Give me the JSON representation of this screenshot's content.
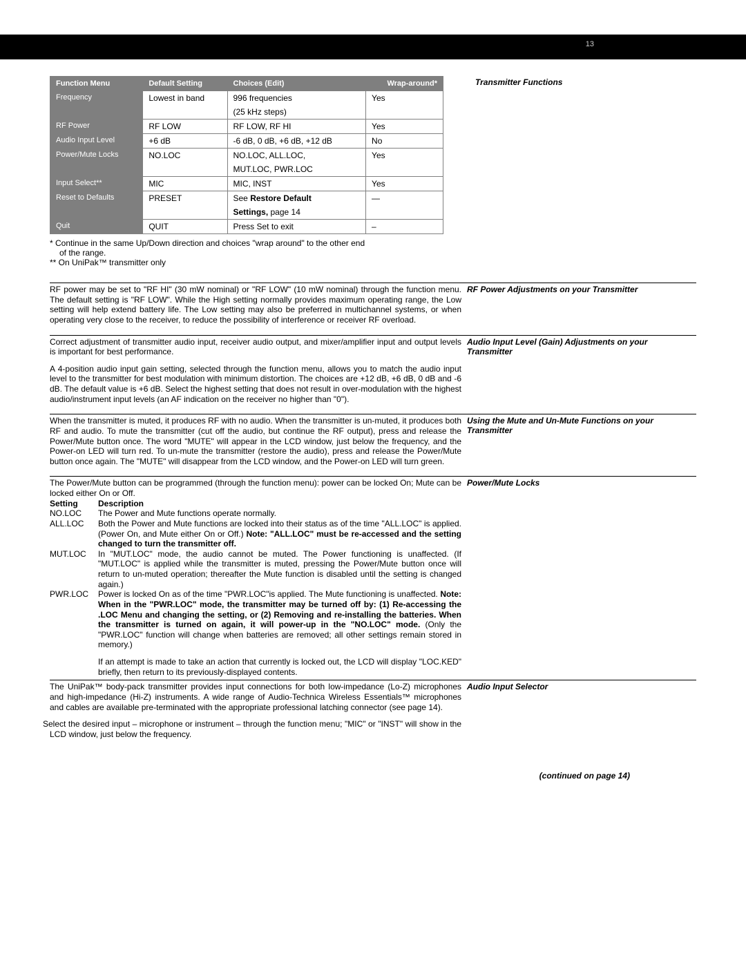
{
  "page_number": "13",
  "table": {
    "headers": [
      "Function Menu",
      "Default Setting",
      "Choices (Edit)",
      "Wrap-around*"
    ],
    "rows": [
      {
        "label": "Frequency",
        "default": "Lowest in band",
        "choices": "996 frequencies",
        "choices2": "(25 kHz steps)",
        "wrap": "Yes"
      },
      {
        "label": "RF Power",
        "default": "RF LOW",
        "choices": "RF LOW, RF HI",
        "wrap": "Yes"
      },
      {
        "label": "Audio Input Level",
        "default": "+6 dB",
        "choices": "-6 dB, 0 dB, +6 dB, +12 dB",
        "wrap": "No"
      },
      {
        "label": "Power/Mute Locks",
        "default": "NO.LOC",
        "choices": "NO.LOC, ALL.LOC,",
        "choices2": "MUT.LOC, PWR.LOC",
        "wrap": "Yes"
      },
      {
        "label": "Input Select**",
        "default": "MIC",
        "choices": "MIC, INST",
        "wrap": "Yes"
      },
      {
        "label": "Reset to Defaults",
        "default": "PRESET",
        "choices_pre": "See ",
        "choices_b": "Restore Default",
        "choices2_b": "Settings,",
        "choices2_post": " page 14",
        "wrap": "—"
      },
      {
        "label": "Quit",
        "default": "QUIT",
        "choices": "Press Set to exit",
        "wrap": "–"
      }
    ],
    "side_heading": "Transmitter Functions"
  },
  "star_notes": {
    "n1a": "*  Continue in the same Up/Down direction and choices \"wrap around\" to the other end",
    "n1b": "of the range.",
    "n2": "** On UniPak™ transmitter only"
  },
  "rfpower": {
    "heading": "RF Power Adjustments on your Transmitter",
    "body": "RF power may be set to \"RF HI\" (30 mW nominal) or \"RF LOW\" (10 mW nominal) through the function menu. The default setting is \"RF LOW\". While the High setting normally provides maximum operating range, the Low setting will help extend battery life. The Low setting may also be preferred in multichannel systems, or when operating very close to the receiver, to reduce the possibility of interference or receiver RF overload."
  },
  "gain": {
    "heading": "Audio Input Level (Gain) Adjustments on your Transmitter",
    "p1": "Correct adjustment of transmitter audio input, receiver audio output, and mixer/amplifier input and output levels is important for best performance.",
    "p2": "A 4-position audio input gain setting, selected through the function menu, allows you to match the audio input level to the transmitter for best modulation with minimum distortion. The choices are +12 dB, +6 dB, 0 dB and -6 dB. The default value is +6 dB. Select the highest setting that does not result in over-modulation with the highest audio/instrument input levels (an AF indication on the receiver no higher than \"0\")."
  },
  "mute": {
    "heading": "Using the Mute and Un-Mute Functions on your Transmitter",
    "body": "When the transmitter is muted, it produces RF with no audio. When the transmitter is un-muted, it produces both RF and audio. To mute the transmitter (cut off the audio, but continue the RF output), press and release the Power/Mute button once. The word \"MUTE\" will appear in the LCD window, just below the frequency, and the Power-on LED will turn red. To un-mute the transmitter (restore the audio), press and release the Power/Mute button once again. The \"MUTE\" will disappear from the LCD window, and the Power-on LED will turn green."
  },
  "locks": {
    "heading": "Power/Mute Locks",
    "intro": "The Power/Mute button can be programmed (through the function menu): power can be locked On; Mute can be locked either On or Off.",
    "h_setting": "Setting",
    "h_desc": "Description",
    "noloc_l": "NO.LOC",
    "noloc_d": "The Power and Mute functions operate normally.",
    "allloc_l": "ALL.LOC",
    "allloc_d1": "Both the Power and Mute functions are locked into their status as of the time \"ALL.LOC\" is applied. (Power On, and Mute either On or Off.) ",
    "allloc_b": "Note: \"ALL.LOC\" must be re-accessed and the setting changed to turn the transmitter off.",
    "mutloc_l": "MUT.LOC",
    "mutloc_d": "In \"MUT.LOC\" mode, the audio cannot be muted. The Power functioning is unaffected. (If \"MUT.LOC\" is applied while the transmitter is muted, pressing the Power/Mute button once will return to un-muted operation; thereafter the Mute function is disabled until the setting is changed again.)",
    "pwrloc_l": "PWR.LOC",
    "pwrloc_d1": "Power is locked On as of the time \"PWR.LOC\"is applied. The Mute functioning is unaffected. ",
    "pwrloc_b": "Note: When in the \"PWR.LOC\" mode, the transmitter may be turned off by: (1) Re-accessing the .LOC Menu and changing the setting, or (2) Removing and re-installing the batteries. When the transmitter is turned on again, it will power-up in the \"NO.LOC\" mode. ",
    "pwrloc_d2": "(Only the \"PWR.LOC\" function will change when batteries are removed; all other settings remain stored in memory.)",
    "locked": "If an attempt is made to take an action that currently is locked out, the LCD will display \"LOC.KED\" briefly, then return to its previously-displayed contents."
  },
  "selector": {
    "heading": "Audio Input Selector",
    "p1a": "The UniPak™ body-pack transmitter provides input connections for both low-impedance (Lo-Z) microphones and high-impedance (Hi-Z) instruments. A wide range of Audio-Technica Wireless Essentials™ microphones and cables are available pre-terminated with the appropriate professional latching connector (",
    "p1b": "see page 14",
    "p1c": ").",
    "p2": "Select the desired input – microphone or instrument – through the function menu; \"MIC\" or \"INST\" will show in the LCD window, just below the frequency."
  },
  "continued": "(continued on page 14)"
}
